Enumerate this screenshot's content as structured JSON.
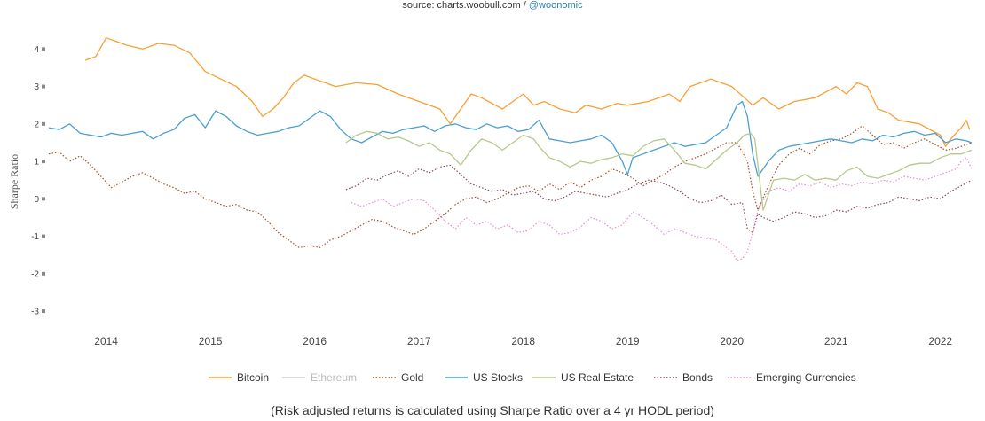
{
  "header": {
    "source_prefix": "source: charts.woobull.com / ",
    "source_handle": "@woonomic"
  },
  "note": "(Risk adjusted returns is calculated using Sharpe Ratio over a 4 yr HODL period)",
  "chart_data": {
    "type": "line",
    "ylabel": "Sharpe Ratio",
    "xlabel": "",
    "ylim": [
      -3.4,
      4.6
    ],
    "yticks": [
      "4",
      "3",
      "2",
      "1",
      "0",
      "-1",
      "-2",
      "-3"
    ],
    "yticks_values": [
      4,
      3,
      2,
      1,
      0,
      -1,
      -2,
      -3
    ],
    "xticks": [
      "2014",
      "2015",
      "2016",
      "2017",
      "2018",
      "2019",
      "2020",
      "2021",
      "2022"
    ],
    "xticks_values": [
      2014.0,
      2015.0,
      2016.0,
      2017.0,
      2018.0,
      2019.0,
      2020.0,
      2021.0,
      2022.0
    ],
    "xlim": [
      2013.45,
      2022.3
    ],
    "grid": false,
    "legend_position": "bottom",
    "series": [
      {
        "name": "Bitcoin",
        "color": "#f7a035",
        "dash": "solid",
        "visible": true,
        "x": [
          2013.8,
          2013.9,
          2014.0,
          2014.1,
          2014.2,
          2014.35,
          2014.5,
          2014.65,
          2014.8,
          2014.95,
          2015.1,
          2015.25,
          2015.4,
          2015.5,
          2015.6,
          2015.7,
          2015.8,
          2015.9,
          2016.0,
          2016.2,
          2016.4,
          2016.6,
          2016.8,
          2017.0,
          2017.2,
          2017.3,
          2017.4,
          2017.5,
          2017.6,
          2017.8,
          2018.0,
          2018.1,
          2018.2,
          2018.35,
          2018.5,
          2018.6,
          2018.75,
          2018.9,
          2019.0,
          2019.2,
          2019.4,
          2019.5,
          2019.6,
          2019.8,
          2020.0,
          2020.2,
          2020.3,
          2020.45,
          2020.6,
          2020.8,
          2021.0,
          2021.1,
          2021.2,
          2021.3,
          2021.4,
          2021.5,
          2021.6,
          2021.8,
          2022.0,
          2022.05,
          2022.1,
          2022.2,
          2022.25,
          2022.28
        ],
        "y": [
          3.7,
          3.8,
          4.3,
          4.2,
          4.1,
          4.0,
          4.15,
          4.1,
          3.9,
          3.4,
          3.2,
          3.0,
          2.6,
          2.2,
          2.4,
          2.7,
          3.1,
          3.3,
          3.2,
          3.0,
          3.1,
          3.05,
          2.8,
          2.6,
          2.4,
          2.0,
          2.4,
          2.8,
          2.7,
          2.4,
          2.8,
          2.5,
          2.6,
          2.4,
          2.3,
          2.5,
          2.4,
          2.55,
          2.5,
          2.6,
          2.8,
          2.6,
          3.0,
          3.2,
          3.0,
          2.5,
          2.7,
          2.4,
          2.6,
          2.7,
          3.0,
          2.8,
          3.1,
          3.0,
          2.4,
          2.3,
          2.1,
          2.0,
          1.7,
          1.4,
          1.6,
          1.9,
          2.1,
          1.85
        ]
      },
      {
        "name": "Ethereum",
        "color": "#cccccc",
        "dash": "solid",
        "visible": false,
        "x": [],
        "y": []
      },
      {
        "name": "Gold",
        "color": "#a0522d",
        "dash": "dot",
        "visible": true,
        "x": [
          2013.45,
          2013.55,
          2013.65,
          2013.75,
          2013.85,
          2013.95,
          2014.05,
          2014.15,
          2014.25,
          2014.35,
          2014.45,
          2014.55,
          2014.65,
          2014.75,
          2014.85,
          2014.95,
          2015.05,
          2015.15,
          2015.25,
          2015.35,
          2015.45,
          2015.55,
          2015.65,
          2015.75,
          2015.85,
          2015.95,
          2016.05,
          2016.15,
          2016.25,
          2016.35,
          2016.45,
          2016.55,
          2016.65,
          2016.75,
          2016.85,
          2016.95,
          2017.05,
          2017.15,
          2017.25,
          2017.35,
          2017.45,
          2017.55,
          2017.65,
          2017.75,
          2017.85,
          2017.95,
          2018.05,
          2018.15,
          2018.25,
          2018.35,
          2018.45,
          2018.55,
          2018.65,
          2018.75,
          2018.85,
          2018.95,
          2019.05,
          2019.15,
          2019.25,
          2019.35,
          2019.45,
          2019.55,
          2019.65,
          2019.75,
          2019.85,
          2019.95,
          2020.05,
          2020.15,
          2020.2,
          2020.25,
          2020.35,
          2020.45,
          2020.55,
          2020.65,
          2020.75,
          2020.85,
          2020.95,
          2021.05,
          2021.15,
          2021.25,
          2021.35,
          2021.45,
          2021.55,
          2021.65,
          2021.75,
          2021.85,
          2021.95,
          2022.05,
          2022.15,
          2022.25,
          2022.3
        ],
        "y": [
          1.2,
          1.25,
          1.0,
          1.15,
          0.9,
          0.6,
          0.3,
          0.45,
          0.6,
          0.7,
          0.55,
          0.4,
          0.3,
          0.15,
          0.2,
          0.0,
          -0.1,
          -0.2,
          -0.15,
          -0.3,
          -0.35,
          -0.6,
          -0.9,
          -1.1,
          -1.3,
          -1.25,
          -1.3,
          -1.1,
          -1.0,
          -0.85,
          -0.7,
          -0.55,
          -0.6,
          -0.75,
          -0.85,
          -0.95,
          -0.8,
          -0.6,
          -0.4,
          -0.15,
          0.0,
          0.05,
          -0.1,
          0.0,
          0.15,
          0.3,
          0.35,
          0.2,
          0.4,
          0.25,
          0.45,
          0.3,
          0.5,
          0.6,
          0.8,
          0.7,
          0.55,
          0.35,
          0.5,
          0.65,
          0.85,
          1.0,
          1.1,
          1.2,
          1.35,
          1.5,
          1.5,
          1.0,
          0.2,
          -0.3,
          0.35,
          0.9,
          1.2,
          1.35,
          1.2,
          1.45,
          1.55,
          1.6,
          1.75,
          1.95,
          1.7,
          1.45,
          1.5,
          1.35,
          1.5,
          1.6,
          1.45,
          1.3,
          1.35,
          1.45,
          1.5
        ]
      },
      {
        "name": "US Stocks",
        "color": "#4a9fd1",
        "dash": "solid",
        "visible": true,
        "x": [
          2013.45,
          2013.55,
          2013.65,
          2013.75,
          2013.85,
          2013.95,
          2014.05,
          2014.15,
          2014.25,
          2014.35,
          2014.45,
          2014.55,
          2014.65,
          2014.75,
          2014.85,
          2014.95,
          2015.05,
          2015.15,
          2015.25,
          2015.35,
          2015.45,
          2015.55,
          2015.65,
          2015.75,
          2015.85,
          2015.95,
          2016.05,
          2016.15,
          2016.25,
          2016.35,
          2016.45,
          2016.55,
          2016.65,
          2016.75,
          2016.85,
          2016.95,
          2017.05,
          2017.15,
          2017.25,
          2017.35,
          2017.45,
          2017.55,
          2017.65,
          2017.75,
          2017.85,
          2017.95,
          2018.05,
          2018.15,
          2018.25,
          2018.35,
          2018.45,
          2018.55,
          2018.65,
          2018.75,
          2018.85,
          2018.95,
          2019.0,
          2019.05,
          2019.15,
          2019.25,
          2019.35,
          2019.45,
          2019.55,
          2019.65,
          2019.75,
          2019.85,
          2019.95,
          2020.05,
          2020.1,
          2020.15,
          2020.2,
          2020.25,
          2020.35,
          2020.45,
          2020.55,
          2020.65,
          2020.75,
          2020.85,
          2020.95,
          2021.05,
          2021.15,
          2021.25,
          2021.35,
          2021.45,
          2021.55,
          2021.65,
          2021.75,
          2021.85,
          2021.95,
          2022.05,
          2022.15,
          2022.25,
          2022.3
        ],
        "y": [
          1.9,
          1.85,
          2.0,
          1.75,
          1.7,
          1.65,
          1.75,
          1.7,
          1.75,
          1.8,
          1.6,
          1.75,
          1.85,
          2.15,
          2.25,
          1.9,
          2.35,
          2.2,
          1.95,
          1.8,
          1.7,
          1.75,
          1.8,
          1.9,
          1.95,
          2.15,
          2.35,
          2.2,
          1.85,
          1.6,
          1.5,
          1.65,
          1.8,
          1.75,
          1.85,
          1.9,
          1.95,
          1.8,
          1.95,
          2.0,
          1.9,
          1.85,
          2.0,
          1.9,
          1.95,
          1.8,
          1.85,
          2.1,
          1.6,
          1.55,
          1.5,
          1.55,
          1.6,
          1.7,
          1.5,
          1.0,
          0.65,
          1.1,
          1.2,
          1.3,
          1.4,
          1.5,
          1.4,
          1.45,
          1.5,
          1.7,
          1.9,
          2.5,
          2.6,
          2.2,
          1.2,
          0.6,
          1.0,
          1.3,
          1.4,
          1.45,
          1.5,
          1.55,
          1.6,
          1.55,
          1.5,
          1.6,
          1.55,
          1.7,
          1.65,
          1.75,
          1.8,
          1.7,
          1.75,
          1.5,
          1.6,
          1.55,
          1.5
        ]
      },
      {
        "name": "US Real Estate",
        "color": "#b5c98a",
        "dash": "solid",
        "visible": true,
        "x": [
          2016.3,
          2016.4,
          2016.5,
          2016.6,
          2016.7,
          2016.8,
          2016.9,
          2017.0,
          2017.1,
          2017.2,
          2017.3,
          2017.4,
          2017.5,
          2017.6,
          2017.7,
          2017.8,
          2017.9,
          2018.0,
          2018.1,
          2018.15,
          2018.25,
          2018.35,
          2018.45,
          2018.55,
          2018.65,
          2018.75,
          2018.85,
          2018.95,
          2019.05,
          2019.15,
          2019.25,
          2019.35,
          2019.45,
          2019.55,
          2019.65,
          2019.75,
          2019.85,
          2019.95,
          2020.05,
          2020.12,
          2020.18,
          2020.22,
          2020.3,
          2020.4,
          2020.5,
          2020.6,
          2020.7,
          2020.8,
          2020.9,
          2021.0,
          2021.1,
          2021.2,
          2021.3,
          2021.4,
          2021.5,
          2021.6,
          2021.7,
          2021.8,
          2021.9,
          2022.0,
          2022.1,
          2022.2,
          2022.3
        ],
        "y": [
          1.5,
          1.7,
          1.8,
          1.75,
          1.6,
          1.65,
          1.55,
          1.4,
          1.5,
          1.3,
          1.2,
          0.9,
          1.3,
          1.6,
          1.5,
          1.3,
          1.5,
          1.7,
          1.6,
          1.4,
          1.1,
          1.0,
          0.85,
          1.0,
          0.95,
          1.05,
          1.1,
          1.2,
          1.15,
          1.4,
          1.55,
          1.6,
          1.3,
          0.95,
          0.9,
          0.8,
          1.05,
          1.3,
          1.5,
          1.7,
          1.75,
          1.6,
          -0.3,
          0.5,
          0.55,
          0.5,
          0.65,
          0.5,
          0.55,
          0.5,
          0.75,
          0.85,
          0.6,
          0.55,
          0.65,
          0.75,
          0.9,
          0.95,
          0.95,
          1.1,
          1.2,
          1.2,
          1.3
        ]
      },
      {
        "name": "Bonds",
        "color": "#8c4a52",
        "dash": "dot",
        "visible": true,
        "x": [
          2016.3,
          2016.4,
          2016.5,
          2016.6,
          2016.7,
          2016.8,
          2016.9,
          2017.0,
          2017.1,
          2017.2,
          2017.3,
          2017.4,
          2017.5,
          2017.6,
          2017.7,
          2017.8,
          2017.9,
          2018.0,
          2018.1,
          2018.2,
          2018.3,
          2018.4,
          2018.5,
          2018.6,
          2018.7,
          2018.8,
          2018.9,
          2019.0,
          2019.1,
          2019.2,
          2019.3,
          2019.4,
          2019.5,
          2019.6,
          2019.7,
          2019.8,
          2019.9,
          2020.0,
          2020.1,
          2020.15,
          2020.2,
          2020.25,
          2020.3,
          2020.4,
          2020.5,
          2020.6,
          2020.7,
          2020.8,
          2020.9,
          2021.0,
          2021.1,
          2021.2,
          2021.3,
          2021.4,
          2021.5,
          2021.6,
          2021.7,
          2021.8,
          2021.9,
          2022.0,
          2022.1,
          2022.2,
          2022.3
        ],
        "y": [
          0.25,
          0.35,
          0.55,
          0.5,
          0.65,
          0.75,
          0.6,
          0.8,
          0.7,
          0.85,
          0.9,
          0.65,
          0.4,
          0.3,
          0.2,
          0.25,
          0.1,
          0.15,
          0.2,
          0.0,
          -0.05,
          0.05,
          0.2,
          0.15,
          0.1,
          0.05,
          0.15,
          0.25,
          0.4,
          0.5,
          0.45,
          0.35,
          0.2,
          0.0,
          -0.1,
          -0.05,
          0.1,
          -0.15,
          -0.1,
          -0.8,
          -0.9,
          -0.4,
          -0.5,
          -0.6,
          -0.5,
          -0.35,
          -0.4,
          -0.5,
          -0.45,
          -0.3,
          -0.35,
          -0.2,
          -0.25,
          -0.15,
          -0.1,
          0.05,
          0.0,
          -0.05,
          0.05,
          0.0,
          0.2,
          0.35,
          0.5
        ]
      },
      {
        "name": "Emerging Currencies",
        "color": "#e88fd5",
        "dash": "dot",
        "visible": true,
        "x": [
          2016.35,
          2016.45,
          2016.55,
          2016.65,
          2016.75,
          2016.85,
          2016.95,
          2017.05,
          2017.15,
          2017.25,
          2017.35,
          2017.45,
          2017.55,
          2017.65,
          2017.75,
          2017.85,
          2017.95,
          2018.05,
          2018.15,
          2018.25,
          2018.35,
          2018.45,
          2018.55,
          2018.65,
          2018.75,
          2018.85,
          2018.95,
          2019.05,
          2019.15,
          2019.25,
          2019.35,
          2019.45,
          2019.55,
          2019.65,
          2019.75,
          2019.85,
          2019.95,
          2020.0,
          2020.05,
          2020.1,
          2020.15,
          2020.2,
          2020.25,
          2020.35,
          2020.45,
          2020.55,
          2020.65,
          2020.75,
          2020.85,
          2020.95,
          2021.05,
          2021.15,
          2021.25,
          2021.35,
          2021.45,
          2021.55,
          2021.65,
          2021.75,
          2021.85,
          2021.95,
          2022.05,
          2022.15,
          2022.2,
          2022.25,
          2022.3
        ],
        "y": [
          -0.1,
          -0.2,
          -0.1,
          0.0,
          -0.2,
          -0.1,
          0.0,
          -0.05,
          -0.3,
          -0.6,
          -0.8,
          -0.5,
          -0.7,
          -0.6,
          -0.8,
          -0.7,
          -0.9,
          -0.85,
          -0.6,
          -0.7,
          -0.95,
          -0.9,
          -0.75,
          -0.5,
          -0.6,
          -0.8,
          -0.7,
          -0.35,
          -0.5,
          -0.7,
          -0.95,
          -0.8,
          -0.9,
          -1.0,
          -1.05,
          -1.1,
          -1.3,
          -1.4,
          -1.65,
          -1.6,
          -1.4,
          -0.9,
          -0.3,
          0.2,
          0.3,
          0.2,
          0.4,
          0.35,
          0.45,
          0.3,
          0.4,
          0.35,
          0.45,
          0.4,
          0.5,
          0.45,
          0.6,
          0.55,
          0.5,
          0.6,
          0.7,
          0.8,
          1.0,
          1.1,
          0.8
        ]
      }
    ]
  }
}
